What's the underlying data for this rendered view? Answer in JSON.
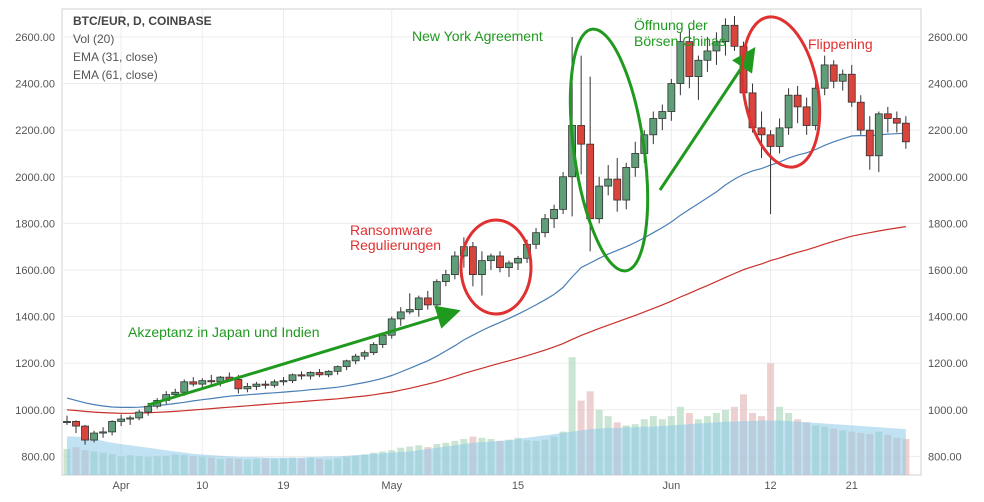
{
  "legend": {
    "title": "BTC/EUR, D, COINBASE",
    "vol": "Vol (20)",
    "ema31": "EMA (31, close)",
    "ema61": "EMA (61, close)"
  },
  "annotations": {
    "japan": "Akzeptanz in Japan und Indien",
    "ransom1": "Ransomware",
    "ransom2": "Regulierungen",
    "ny": "New York Agreement",
    "china1": "Öffnung der",
    "china2": "Börsen  Chinas",
    "flip": "Flippening"
  },
  "colors": {
    "up": "#5f9e78",
    "down": "#d9453c",
    "ema31": "#4a7fb5",
    "ema61": "#c8302a",
    "volume": "#8ecbe8",
    "annot_green": "#1f9a1f",
    "annot_red": "#e03030"
  },
  "chart_data": {
    "type": "candlestick",
    "symbol": "BTC/EUR, D, COINBASE",
    "y_ticks": [
      "800.00",
      "1000.00",
      "1200.00",
      "1400.00",
      "1600.00",
      "1800.00",
      "2000.00",
      "2200.00",
      "2400.00",
      "2600.00"
    ],
    "ylim": [
      720,
      2720
    ],
    "x_ticks": [
      {
        "label": "Apr",
        "index": 6
      },
      {
        "label": "10",
        "index": 15
      },
      {
        "label": "19",
        "index": 24
      },
      {
        "label": "May",
        "index": 36
      },
      {
        "label": "15",
        "index": 50
      },
      {
        "label": "Jun",
        "index": 67
      },
      {
        "label": "12",
        "index": 78
      },
      {
        "label": "21",
        "index": 87
      }
    ],
    "candles": [
      [
        945,
        975,
        935,
        950
      ],
      [
        950,
        955,
        900,
        930
      ],
      [
        930,
        935,
        850,
        870
      ],
      [
        870,
        910,
        860,
        900
      ],
      [
        900,
        925,
        880,
        905
      ],
      [
        905,
        955,
        890,
        950
      ],
      [
        950,
        980,
        930,
        960
      ],
      [
        960,
        975,
        935,
        965
      ],
      [
        965,
        1000,
        955,
        990
      ],
      [
        990,
        1030,
        975,
        1015
      ],
      [
        1015,
        1050,
        1005,
        1040
      ],
      [
        1040,
        1080,
        1025,
        1065
      ],
      [
        1065,
        1090,
        1050,
        1075
      ],
      [
        1075,
        1130,
        1060,
        1120
      ],
      [
        1120,
        1140,
        1100,
        1110
      ],
      [
        1110,
        1135,
        1090,
        1125
      ],
      [
        1125,
        1150,
        1105,
        1120
      ],
      [
        1120,
        1145,
        1100,
        1140
      ],
      [
        1140,
        1160,
        1120,
        1130
      ],
      [
        1130,
        1150,
        1070,
        1090
      ],
      [
        1090,
        1115,
        1075,
        1100
      ],
      [
        1100,
        1120,
        1085,
        1110
      ],
      [
        1110,
        1125,
        1090,
        1105
      ],
      [
        1105,
        1130,
        1095,
        1120
      ],
      [
        1120,
        1140,
        1105,
        1125
      ],
      [
        1125,
        1155,
        1115,
        1150
      ],
      [
        1150,
        1165,
        1130,
        1145
      ],
      [
        1145,
        1165,
        1130,
        1160
      ],
      [
        1160,
        1175,
        1140,
        1150
      ],
      [
        1150,
        1170,
        1140,
        1165
      ],
      [
        1165,
        1190,
        1150,
        1185
      ],
      [
        1185,
        1215,
        1170,
        1210
      ],
      [
        1210,
        1240,
        1195,
        1230
      ],
      [
        1230,
        1255,
        1215,
        1245
      ],
      [
        1245,
        1290,
        1235,
        1280
      ],
      [
        1280,
        1330,
        1265,
        1320
      ],
      [
        1320,
        1400,
        1305,
        1390
      ],
      [
        1390,
        1440,
        1360,
        1420
      ],
      [
        1420,
        1500,
        1410,
        1430
      ],
      [
        1430,
        1490,
        1400,
        1480
      ],
      [
        1480,
        1510,
        1430,
        1450
      ],
      [
        1450,
        1560,
        1440,
        1550
      ],
      [
        1550,
        1600,
        1530,
        1580
      ],
      [
        1580,
        1680,
        1560,
        1660
      ],
      [
        1660,
        1740,
        1610,
        1700
      ],
      [
        1700,
        1720,
        1530,
        1580
      ],
      [
        1580,
        1680,
        1490,
        1640
      ],
      [
        1640,
        1670,
        1600,
        1660
      ],
      [
        1660,
        1680,
        1590,
        1610
      ],
      [
        1610,
        1640,
        1570,
        1630
      ],
      [
        1630,
        1660,
        1600,
        1650
      ],
      [
        1650,
        1730,
        1630,
        1710
      ],
      [
        1710,
        1780,
        1690,
        1760
      ],
      [
        1760,
        1840,
        1740,
        1820
      ],
      [
        1820,
        1880,
        1780,
        1860
      ],
      [
        1860,
        2020,
        1840,
        2000
      ],
      [
        2000,
        2600,
        1830,
        2220
      ],
      [
        2220,
        2520,
        2010,
        2140
      ],
      [
        2140,
        2430,
        1680,
        1820
      ],
      [
        1820,
        2000,
        1800,
        1960
      ],
      [
        1960,
        2050,
        1920,
        1990
      ],
      [
        1990,
        2080,
        1850,
        1900
      ],
      [
        1900,
        2060,
        1860,
        2040
      ],
      [
        2040,
        2150,
        2000,
        2100
      ],
      [
        2100,
        2200,
        2060,
        2180
      ],
      [
        2180,
        2280,
        2140,
        2250
      ],
      [
        2250,
        2310,
        2200,
        2280
      ],
      [
        2280,
        2420,
        2240,
        2400
      ],
      [
        2400,
        2620,
        2350,
        2580
      ],
      [
        2580,
        2640,
        2380,
        2430
      ],
      [
        2430,
        2520,
        2330,
        2500
      ],
      [
        2500,
        2600,
        2450,
        2540
      ],
      [
        2540,
        2620,
        2480,
        2580
      ],
      [
        2580,
        2680,
        2520,
        2650
      ],
      [
        2650,
        2690,
        2540,
        2560
      ],
      [
        2560,
        2580,
        2340,
        2360
      ],
      [
        2360,
        2400,
        2190,
        2210
      ],
      [
        2210,
        2280,
        2080,
        2180
      ],
      [
        2180,
        2200,
        1840,
        2130
      ],
      [
        2130,
        2250,
        2100,
        2210
      ],
      [
        2210,
        2380,
        2180,
        2350
      ],
      [
        2350,
        2390,
        2230,
        2300
      ],
      [
        2300,
        2340,
        2180,
        2220
      ],
      [
        2220,
        2420,
        2200,
        2380
      ],
      [
        2380,
        2520,
        2350,
        2480
      ],
      [
        2480,
        2500,
        2380,
        2410
      ],
      [
        2410,
        2460,
        2370,
        2440
      ],
      [
        2440,
        2480,
        2300,
        2320
      ],
      [
        2320,
        2350,
        2180,
        2200
      ],
      [
        2200,
        2260,
        2030,
        2090
      ],
      [
        2090,
        2280,
        2020,
        2270
      ],
      [
        2270,
        2300,
        2190,
        2250
      ],
      [
        2250,
        2280,
        2190,
        2230
      ],
      [
        2230,
        2260,
        2120,
        2150
      ]
    ],
    "ema31": [
      1050,
      1040,
      1030,
      1022,
      1016,
      1012,
      1010,
      1010,
      1011,
      1014,
      1018,
      1022,
      1027,
      1032,
      1038,
      1043,
      1048,
      1053,
      1058,
      1061,
      1064,
      1067,
      1070,
      1073,
      1076,
      1079,
      1082,
      1086,
      1089,
      1093,
      1097,
      1103,
      1110,
      1117,
      1125,
      1135,
      1147,
      1162,
      1178,
      1194,
      1210,
      1230,
      1252,
      1275,
      1300,
      1320,
      1340,
      1358,
      1375,
      1392,
      1410,
      1430,
      1450,
      1472,
      1495,
      1525,
      1570,
      1610,
      1630,
      1650,
      1668,
      1684,
      1700,
      1718,
      1738,
      1760,
      1782,
      1806,
      1835,
      1860,
      1885,
      1910,
      1935,
      1965,
      1990,
      2010,
      2025,
      2035,
      2050,
      2063,
      2080,
      2093,
      2103,
      2117,
      2135,
      2150,
      2163,
      2175,
      2177,
      2176,
      2180,
      2183,
      2185,
      2187
    ],
    "ema61": [
      1000,
      997,
      993,
      990,
      988,
      986,
      985,
      985,
      986,
      987,
      989,
      991,
      993,
      996,
      999,
      1002,
      1005,
      1008,
      1011,
      1014,
      1017,
      1020,
      1023,
      1026,
      1029,
      1032,
      1035,
      1038,
      1041,
      1044,
      1047,
      1051,
      1055,
      1059,
      1064,
      1070,
      1076,
      1084,
      1092,
      1101,
      1110,
      1120,
      1131,
      1143,
      1156,
      1167,
      1178,
      1189,
      1200,
      1210,
      1221,
      1232,
      1244,
      1256,
      1270,
      1284,
      1302,
      1319,
      1334,
      1349,
      1363,
      1377,
      1391,
      1405,
      1420,
      1435,
      1450,
      1466,
      1484,
      1500,
      1517,
      1533,
      1550,
      1568,
      1585,
      1601,
      1614,
      1626,
      1640,
      1651,
      1664,
      1676,
      1686,
      1698,
      1711,
      1723,
      1734,
      1745,
      1753,
      1760,
      1767,
      1774,
      1780,
      1786
    ],
    "volume": [
      0.42,
      0.45,
      0.4,
      0.38,
      0.36,
      0.34,
      0.3,
      0.32,
      0.3,
      0.29,
      0.3,
      0.31,
      0.33,
      0.32,
      0.3,
      0.29,
      0.28,
      0.26,
      0.27,
      0.26,
      0.25,
      0.26,
      0.27,
      0.26,
      0.27,
      0.28,
      0.27,
      0.28,
      0.26,
      0.25,
      0.27,
      0.29,
      0.31,
      0.33,
      0.36,
      0.38,
      0.4,
      0.44,
      0.46,
      0.48,
      0.45,
      0.5,
      0.52,
      0.55,
      0.58,
      0.62,
      0.6,
      0.58,
      0.55,
      0.57,
      0.6,
      0.56,
      0.55,
      0.57,
      0.62,
      0.7,
      1.9,
      1.2,
      1.35,
      1.05,
      0.95,
      0.85,
      0.8,
      0.82,
      0.9,
      0.95,
      0.9,
      0.95,
      1.1,
      1.0,
      0.9,
      0.95,
      1.0,
      1.05,
      1.1,
      1.3,
      1.0,
      0.95,
      1.8,
      1.1,
      1.0,
      0.9,
      0.85,
      0.8,
      0.78,
      0.75,
      0.72,
      0.7,
      0.68,
      0.66,
      0.7,
      0.65,
      0.6,
      0.58
    ],
    "volume_avg": [
      0.62,
      0.62,
      0.6,
      0.58,
      0.55,
      0.52,
      0.5,
      0.48,
      0.46,
      0.44,
      0.42,
      0.4,
      0.38,
      0.36,
      0.34,
      0.33,
      0.32,
      0.31,
      0.3,
      0.29,
      0.29,
      0.29,
      0.28,
      0.28,
      0.28,
      0.28,
      0.28,
      0.29,
      0.29,
      0.3,
      0.3,
      0.31,
      0.32,
      0.33,
      0.34,
      0.35,
      0.36,
      0.37,
      0.38,
      0.4,
      0.42,
      0.44,
      0.46,
      0.48,
      0.5,
      0.52,
      0.53,
      0.54,
      0.55,
      0.56,
      0.58,
      0.6,
      0.62,
      0.64,
      0.66,
      0.68,
      0.7,
      0.72,
      0.74,
      0.75,
      0.76,
      0.76,
      0.77,
      0.77,
      0.78,
      0.78,
      0.79,
      0.8,
      0.81,
      0.82,
      0.83,
      0.84,
      0.85,
      0.86,
      0.86,
      0.87,
      0.87,
      0.88,
      0.88,
      0.88,
      0.87,
      0.86,
      0.85,
      0.84,
      0.83,
      0.82,
      0.81,
      0.8,
      0.79,
      0.78,
      0.77,
      0.76,
      0.75,
      0.74
    ]
  }
}
